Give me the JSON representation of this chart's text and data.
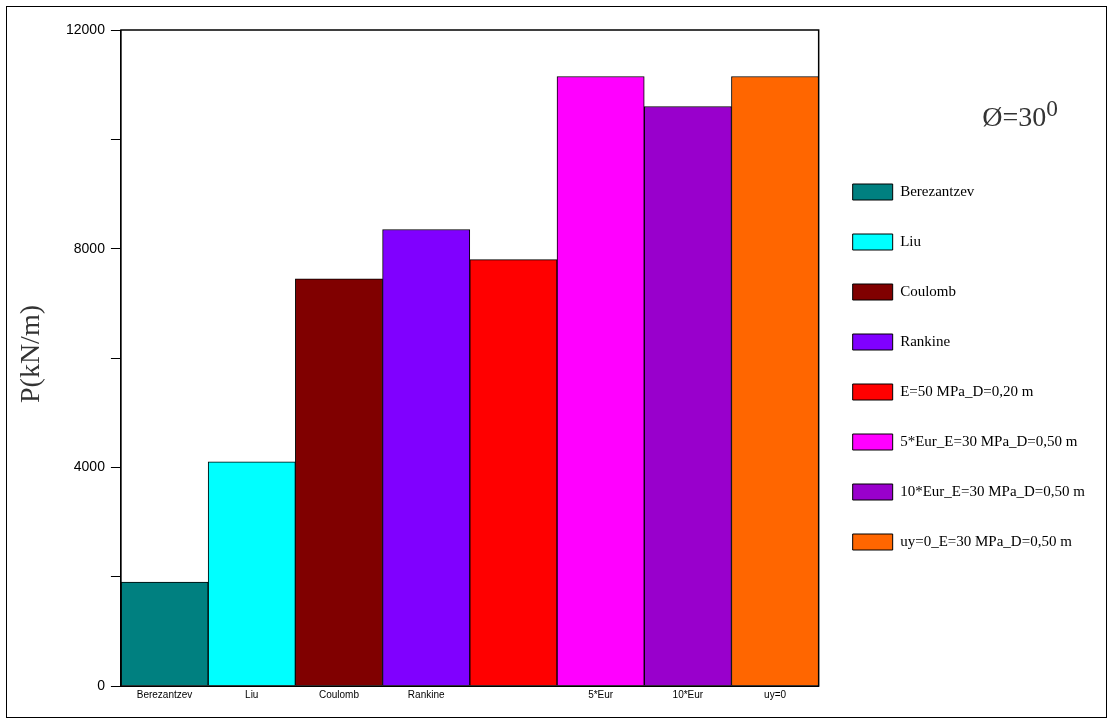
{
  "chart_data": {
    "type": "bar",
    "ylabel": "P(kN/m)",
    "legend_title": "Ø=30$^{0}$",
    "categories": [
      "Berezantzev",
      "Liu",
      "Coulomb",
      "Rankine",
      null,
      "5*Eur",
      "10*Eur",
      "uy=0"
    ],
    "series": [
      {
        "name": "Berezantzev",
        "color": "#008080",
        "values": [
          1900,
          null,
          null,
          null,
          null,
          null,
          null,
          null
        ]
      },
      {
        "name": "Liu",
        "color": "#00ffff",
        "values": [
          null,
          4100,
          null,
          null,
          null,
          null,
          null,
          null
        ]
      },
      {
        "name": "Coulomb",
        "color": "#800000",
        "values": [
          null,
          null,
          7450,
          null,
          null,
          null,
          null,
          null
        ]
      },
      {
        "name": "Rankine",
        "color": "#8000ff",
        "values": [
          null,
          null,
          null,
          8350,
          null,
          null,
          null,
          null
        ]
      },
      {
        "name": "E=50 MPa_D=0,20 m",
        "color": "#ff0000",
        "values": [
          null,
          null,
          null,
          null,
          7800,
          null,
          null,
          null
        ]
      },
      {
        "name": "5*Eur_E=30 MPa_D=0,50 m",
        "color": "#ff00ff",
        "values": [
          null,
          null,
          null,
          null,
          null,
          11150,
          null,
          null
        ]
      },
      {
        "name": "10*Eur_E=30 MPa_D=0,50 m",
        "color": "#9900cc",
        "values": [
          null,
          null,
          null,
          null,
          null,
          null,
          10600,
          null
        ]
      },
      {
        "name": "uy=0_E=30 MPa_D=0,50 m",
        "color": "#ff6600",
        "values": [
          null,
          null,
          null,
          null,
          null,
          null,
          null,
          11150
        ]
      }
    ],
    "ylim": [
      0,
      12000
    ],
    "yticks": [
      0,
      {
        "value": 2000,
        "label": null
      },
      4000,
      {
        "value": 6000,
        "label": null
      },
      8000,
      {
        "value": 10000,
        "label": null
      },
      12000
    ],
    "grid": false,
    "legend": "right"
  }
}
